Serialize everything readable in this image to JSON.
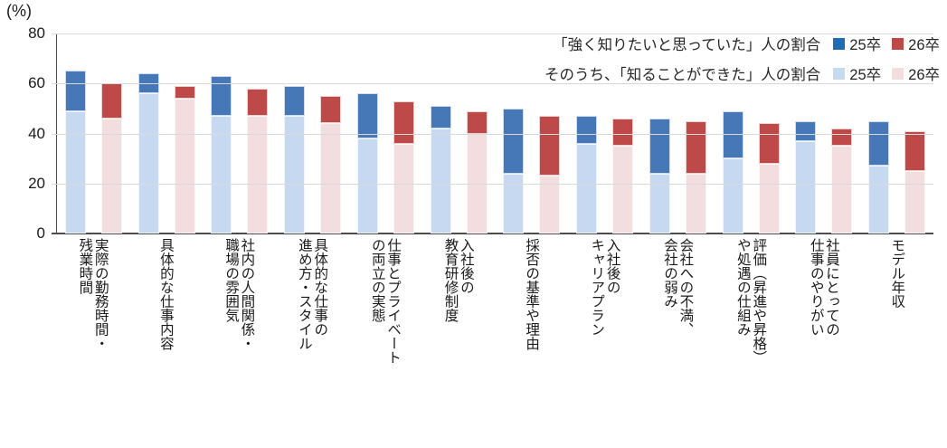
{
  "y_axis": {
    "unit_label": "(%)",
    "min": 0,
    "max": 80,
    "step": 20,
    "tick_labels": [
      "0",
      "20",
      "40",
      "60",
      "80"
    ]
  },
  "legend": {
    "rows": [
      {
        "label": "「強く知りたいと思っていた」人の割合",
        "items": [
          {
            "name": "25卒",
            "color": "#1e6cb5"
          },
          {
            "name": "26卒",
            "color": "#bd4a48"
          }
        ]
      },
      {
        "label": "そのうち、「知ることができた」人の割合",
        "items": [
          {
            "name": "25卒",
            "color": "#c6d9f1"
          },
          {
            "name": "26卒",
            "color": "#f2dede"
          }
        ]
      }
    ]
  },
  "chart_data": {
    "type": "bar",
    "subtype": "stacked-pairs",
    "description": "Each category has two stacked bars: 25卒 (blue) and 26卒 (red). Light base = 「知ることができた」share, dark cap up to total = 「強く知りたいと思っていた」share.",
    "ylim": [
      0,
      80
    ],
    "grid": true,
    "legend_position": "top-right",
    "categories": [
      {
        "label": "実際の勤務時間・残業時間",
        "label_lines": [
          "実際の勤務時間・",
          "残業時間"
        ]
      },
      {
        "label": "具体的な仕事内容",
        "label_lines": [
          "具体的な仕事内容"
        ]
      },
      {
        "label": "社内の人間関係・職場の雰囲気",
        "label_lines": [
          "社内の人間関係・",
          "職場の雰囲気"
        ]
      },
      {
        "label": "具体的な仕事の進め方・スタイル",
        "label_lines": [
          "具体的な仕事の",
          "進め方・スタイル"
        ]
      },
      {
        "label": "仕事とプライベートの両立の実態",
        "label_lines": [
          "仕事とプライベート",
          "の両立の実態"
        ]
      },
      {
        "label": "入社後の教育研修制度",
        "label_lines": [
          "入社後の",
          "教育研修制度"
        ]
      },
      {
        "label": "採否の基準や理由",
        "label_lines": [
          "採否の基準や理由"
        ]
      },
      {
        "label": "入社後のキャリアプラン",
        "label_lines": [
          "入社後の",
          "キャリアプラン"
        ]
      },
      {
        "label": "会社への不満、会社の弱み",
        "label_lines": [
          "会社への不満、",
          "会社の弱み"
        ]
      },
      {
        "label": "評価（昇進や昇格）や処遇の仕組み",
        "label_lines": [
          "評価（昇進や昇格）",
          "や処遇の仕組み"
        ]
      },
      {
        "label": "社員にとっての仕事のやりがい",
        "label_lines": [
          "社員にとっての",
          "仕事のやりがい"
        ]
      },
      {
        "label": "モデル年収",
        "label_lines": [
          "モデル年収"
        ]
      }
    ],
    "series": [
      {
        "name": "「強く知りたいと思っていた」人の割合 25卒",
        "role": "total",
        "cohort": "25卒",
        "color": "#4678b8",
        "values": [
          65,
          64,
          63,
          59,
          56,
          51,
          50,
          47,
          46,
          49,
          45,
          45
        ]
      },
      {
        "name": "そのうち、「知ることができた」人の割合 25卒",
        "role": "base",
        "cohort": "25卒",
        "color": "#c6d9f1",
        "values": [
          49,
          56,
          47,
          47,
          38,
          42,
          24,
          36,
          24,
          30,
          37,
          27
        ]
      },
      {
        "name": "「強く知りたいと思っていた」人の割合 26卒",
        "role": "total",
        "cohort": "26卒",
        "color": "#bd4a48",
        "values": [
          60,
          59,
          58,
          55,
          53,
          49,
          47,
          46,
          45,
          44,
          42,
          41
        ]
      },
      {
        "name": "そのうち、「知ることができた」人の割合 26卒",
        "role": "base",
        "cohort": "26卒",
        "color": "#f2dede",
        "values": [
          46,
          54,
          47,
          44,
          36,
          40,
          23,
          35,
          24,
          28,
          35,
          25
        ]
      }
    ]
  }
}
